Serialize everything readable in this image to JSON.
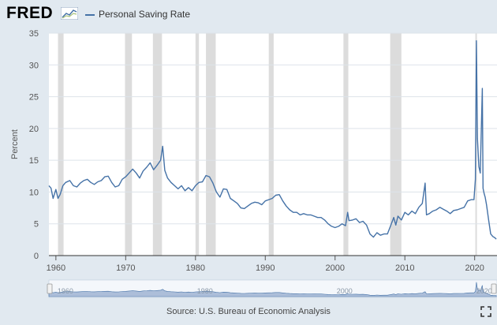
{
  "brand": {
    "logo_text": "FRED"
  },
  "colors": {
    "series": "#4572a7",
    "recession": "#dcdcdc",
    "background": "#e1e9f0",
    "plot": "#ffffff",
    "navigator_fill": "#9fb4d2"
  },
  "icons": {
    "logo_graph": "line-graph-icon",
    "fullscreen": "fullscreen-icon"
  },
  "source": "Source: U.S. Bureau of Economic Analysis",
  "navigator": {
    "tick_labels": [
      "1960",
      "1980",
      "2000",
      "2020"
    ]
  },
  "chart_data": {
    "type": "line",
    "title": "",
    "xlabel": "",
    "ylabel": "Percent",
    "xlim": [
      1959.0,
      2023.2
    ],
    "ylim": [
      0,
      35
    ],
    "y_ticks": [
      0,
      5,
      10,
      15,
      20,
      25,
      30,
      35
    ],
    "x_ticks": [
      1960,
      1970,
      1980,
      1990,
      2000,
      2010,
      2020
    ],
    "x_tick_labels": [
      "1960",
      "1970",
      "1980",
      "1990",
      "2000",
      "2010",
      "2020"
    ],
    "grid": "horizontal",
    "legend": "top-left",
    "recessions": [
      [
        1960.3,
        1961.1
      ],
      [
        1969.9,
        1970.9
      ],
      [
        1973.9,
        1975.2
      ],
      [
        1980.0,
        1980.5
      ],
      [
        1981.5,
        1982.9
      ],
      [
        1990.5,
        1991.2
      ],
      [
        2001.2,
        2001.9
      ],
      [
        2007.9,
        2009.5
      ],
      [
        2020.1,
        2020.3
      ]
    ],
    "series": [
      {
        "name": "Personal Saving Rate",
        "x": [
          1959.0,
          1959.3,
          1959.6,
          1960.0,
          1960.3,
          1960.6,
          1961.0,
          1961.4,
          1962.0,
          1962.5,
          1963.0,
          1963.5,
          1964.0,
          1964.5,
          1965.0,
          1965.5,
          1966.0,
          1966.5,
          1967.0,
          1967.5,
          1968.0,
          1968.5,
          1969.0,
          1969.5,
          1970.0,
          1970.5,
          1971.0,
          1971.5,
          1972.0,
          1972.5,
          1973.0,
          1973.5,
          1974.0,
          1974.5,
          1975.0,
          1975.3,
          1975.6,
          1976.0,
          1976.5,
          1977.0,
          1977.5,
          1978.0,
          1978.5,
          1979.0,
          1979.5,
          1980.0,
          1980.5,
          1981.0,
          1981.5,
          1982.0,
          1982.5,
          1983.0,
          1983.5,
          1984.0,
          1984.5,
          1985.0,
          1985.5,
          1986.0,
          1986.5,
          1987.0,
          1987.5,
          1988.0,
          1988.5,
          1989.0,
          1989.5,
          1990.0,
          1990.5,
          1991.0,
          1991.5,
          1992.0,
          1992.5,
          1993.0,
          1993.5,
          1994.0,
          1994.5,
          1995.0,
          1995.5,
          1996.0,
          1996.5,
          1997.0,
          1997.5,
          1998.0,
          1998.5,
          1999.0,
          1999.5,
          2000.0,
          2000.5,
          2001.0,
          2001.5,
          2001.8,
          2002.0,
          2002.5,
          2003.0,
          2003.5,
          2004.0,
          2004.5,
          2005.0,
          2005.5,
          2006.0,
          2006.5,
          2007.0,
          2007.5,
          2008.0,
          2008.4,
          2008.7,
          2009.0,
          2009.5,
          2010.0,
          2010.5,
          2011.0,
          2011.5,
          2012.0,
          2012.5,
          2012.9,
          2013.1,
          2013.5,
          2014.0,
          2014.5,
          2015.0,
          2015.5,
          2016.0,
          2016.5,
          2017.0,
          2017.5,
          2018.0,
          2018.5,
          2019.0,
          2019.5,
          2019.9,
          2020.1,
          2020.25,
          2020.4,
          2020.6,
          2020.8,
          2020.95,
          2021.1,
          2021.2,
          2021.35,
          2021.5,
          2021.7,
          2022.0,
          2022.3,
          2022.6,
          2022.9,
          2023.1
        ],
        "values": [
          11.0,
          10.6,
          9.0,
          10.4,
          9.0,
          9.6,
          11.0,
          11.5,
          11.8,
          11.0,
          10.8,
          11.4,
          11.8,
          12.0,
          11.5,
          11.2,
          11.6,
          11.8,
          12.4,
          12.5,
          11.5,
          10.8,
          11.0,
          12.0,
          12.4,
          13.0,
          13.6,
          13.0,
          12.2,
          13.3,
          13.9,
          14.6,
          13.5,
          14.2,
          15.0,
          17.2,
          13.4,
          12.2,
          11.5,
          11.0,
          10.5,
          11.0,
          10.2,
          10.7,
          10.2,
          11.0,
          11.5,
          11.6,
          12.6,
          12.4,
          11.4,
          10.0,
          9.2,
          10.5,
          10.4,
          9.0,
          8.6,
          8.2,
          7.5,
          7.4,
          7.8,
          8.2,
          8.4,
          8.3,
          8.0,
          8.6,
          8.8,
          9.0,
          9.5,
          9.6,
          8.6,
          7.8,
          7.2,
          6.8,
          6.8,
          6.4,
          6.6,
          6.4,
          6.4,
          6.2,
          6.0,
          6.0,
          5.6,
          5.0,
          4.6,
          4.4,
          4.6,
          5.0,
          4.7,
          6.8,
          5.5,
          5.6,
          5.8,
          5.2,
          5.4,
          4.8,
          3.4,
          2.9,
          3.6,
          3.2,
          3.4,
          3.4,
          4.8,
          6.0,
          4.8,
          6.2,
          5.6,
          6.8,
          6.4,
          7.0,
          6.6,
          7.6,
          8.2,
          11.4,
          6.4,
          6.6,
          7.0,
          7.2,
          7.6,
          7.3,
          7.0,
          6.6,
          7.1,
          7.2,
          7.4,
          7.6,
          8.6,
          8.8,
          8.8,
          12.0,
          33.8,
          18.4,
          14.0,
          13.0,
          19.8,
          26.3,
          10.6,
          9.8,
          9.2,
          8.0,
          5.6,
          3.4,
          3.0,
          2.8,
          2.6
        ]
      }
    ]
  }
}
